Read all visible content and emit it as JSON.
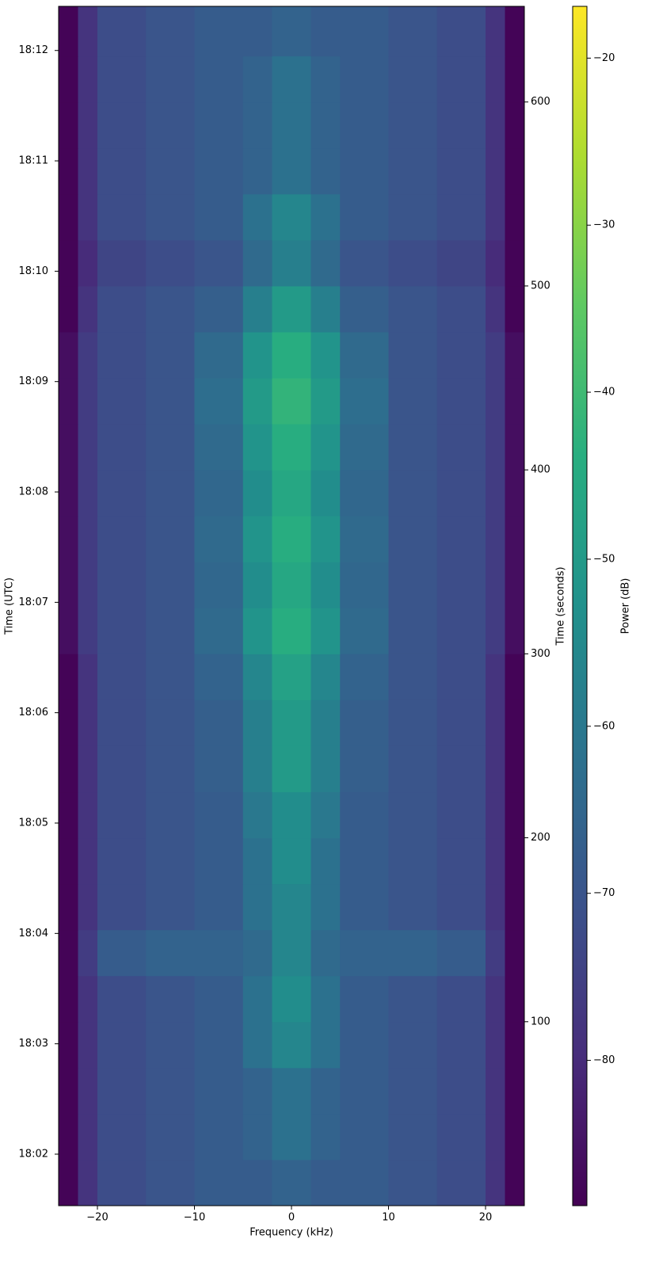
{
  "chart_data": {
    "type": "heatmap",
    "colormap": "viridis",
    "xlabel": "Frequency (kHz)",
    "ylabel": "Time (UTC)",
    "y2label": "Time (seconds)",
    "colorbar_label": "Power (dB)",
    "x_bins": [
      -24,
      -22,
      -20,
      -15,
      -10,
      -5,
      -2,
      2,
      5,
      10,
      15,
      20,
      22,
      24
    ],
    "y_bins": [
      0,
      25,
      50,
      75,
      100,
      125,
      150,
      175,
      200,
      225,
      250,
      275,
      300,
      325,
      350,
      375,
      400,
      425,
      450,
      475,
      500,
      525,
      550,
      575,
      600,
      625,
      652
    ],
    "z": [
      [
        -88,
        -78,
        -72,
        -70,
        -68,
        -68,
        -66,
        -68,
        -68,
        -70,
        -72,
        -78,
        -88
      ],
      [
        -88,
        -78,
        -72,
        -70,
        -68,
        -66,
        -62,
        -66,
        -68,
        -70,
        -72,
        -78,
        -88
      ],
      [
        -88,
        -78,
        -72,
        -70,
        -68,
        -66,
        -62,
        -66,
        -68,
        -70,
        -72,
        -78,
        -88
      ],
      [
        -88,
        -78,
        -72,
        -70,
        -68,
        -62,
        -56,
        -62,
        -68,
        -70,
        -72,
        -78,
        -88
      ],
      [
        -88,
        -78,
        -72,
        -70,
        -68,
        -62,
        -54,
        -62,
        -68,
        -70,
        -72,
        -78,
        -88
      ],
      [
        -88,
        -76,
        -68,
        -66,
        -66,
        -64,
        -56,
        -64,
        -66,
        -66,
        -68,
        -76,
        -88
      ],
      [
        -88,
        -78,
        -72,
        -70,
        -68,
        -62,
        -56,
        -62,
        -68,
        -70,
        -72,
        -78,
        -88
      ],
      [
        -88,
        -78,
        -72,
        -70,
        -68,
        -62,
        -54,
        -62,
        -68,
        -70,
        -72,
        -78,
        -88
      ],
      [
        -88,
        -78,
        -72,
        -70,
        -68,
        -60,
        -54,
        -60,
        -68,
        -70,
        -72,
        -78,
        -88
      ],
      [
        -88,
        -78,
        -72,
        -70,
        -67,
        -58,
        -50,
        -58,
        -67,
        -70,
        -72,
        -78,
        -88
      ],
      [
        -88,
        -78,
        -72,
        -70,
        -67,
        -58,
        -50,
        -58,
        -67,
        -70,
        -72,
        -78,
        -88
      ],
      [
        -88,
        -78,
        -72,
        -70,
        -66,
        -56,
        -48,
        -56,
        -66,
        -70,
        -72,
        -78,
        -88
      ],
      [
        -86,
        -76,
        -72,
        -70,
        -64,
        -52,
        -44,
        -52,
        -64,
        -70,
        -72,
        -76,
        -86
      ],
      [
        -86,
        -76,
        -72,
        -70,
        -65,
        -54,
        -46,
        -54,
        -65,
        -70,
        -72,
        -76,
        -86
      ],
      [
        -86,
        -76,
        -72,
        -70,
        -64,
        -52,
        -44,
        -52,
        -64,
        -70,
        -72,
        -76,
        -86
      ],
      [
        -86,
        -76,
        -72,
        -70,
        -65,
        -54,
        -46,
        -54,
        -65,
        -70,
        -72,
        -76,
        -86
      ],
      [
        -86,
        -76,
        -72,
        -70,
        -64,
        -52,
        -44,
        -52,
        -64,
        -70,
        -72,
        -76,
        -86
      ],
      [
        -86,
        -76,
        -72,
        -70,
        -63,
        -50,
        -42,
        -50,
        -63,
        -70,
        -72,
        -76,
        -86
      ],
      [
        -86,
        -76,
        -72,
        -70,
        -64,
        -52,
        -44,
        -52,
        -64,
        -70,
        -72,
        -76,
        -86
      ],
      [
        -88,
        -78,
        -72,
        -70,
        -67,
        -58,
        -50,
        -58,
        -67,
        -70,
        -72,
        -78,
        -88
      ],
      [
        -88,
        -80,
        -74,
        -72,
        -70,
        -64,
        -58,
        -64,
        -70,
        -72,
        -74,
        -80,
        -88
      ],
      [
        -88,
        -78,
        -72,
        -70,
        -68,
        -62,
        -56,
        -62,
        -68,
        -70,
        -72,
        -78,
        -88
      ],
      [
        -88,
        -78,
        -72,
        -70,
        -68,
        -66,
        -62,
        -66,
        -68,
        -70,
        -72,
        -78,
        -88
      ],
      [
        -88,
        -78,
        -72,
        -70,
        -68,
        -66,
        -62,
        -66,
        -68,
        -70,
        -72,
        -78,
        -88
      ],
      [
        -88,
        -78,
        -72,
        -70,
        -68,
        -66,
        -62,
        -66,
        -68,
        -70,
        -72,
        -78,
        -88
      ],
      [
        -88,
        -78,
        -72,
        -70,
        -68,
        -68,
        -66,
        -68,
        -68,
        -70,
        -72,
        -78,
        -88
      ]
    ],
    "xlim": [
      -24,
      24
    ],
    "xticks": [
      {
        "value": -20,
        "label": "−20"
      },
      {
        "value": -10,
        "label": "−10"
      },
      0,
      10,
      20
    ],
    "ylim": [
      0,
      652
    ],
    "yticks": [
      {
        "value": 28,
        "label": "18:02"
      },
      {
        "value": 88,
        "label": "18:03"
      },
      {
        "value": 148,
        "label": "18:04"
      },
      {
        "value": 208,
        "label": "18:05"
      },
      {
        "value": 268,
        "label": "18:06"
      },
      {
        "value": 328,
        "label": "18:07"
      },
      {
        "value": 388,
        "label": "18:08"
      },
      {
        "value": 448,
        "label": "18:09"
      },
      {
        "value": 508,
        "label": "18:10"
      },
      {
        "value": 568,
        "label": "18:11"
      },
      {
        "value": 628,
        "label": "18:12"
      }
    ],
    "y2lim": [
      0,
      652
    ],
    "y2ticks": [
      100,
      200,
      300,
      400,
      500,
      600
    ],
    "clim": [
      -88.7,
      -16.9
    ],
    "cticks": [
      {
        "value": -80,
        "label": "−80"
      },
      {
        "value": -70,
        "label": "−70"
      },
      {
        "value": -60,
        "label": "−60"
      },
      {
        "value": -50,
        "label": "−50"
      },
      {
        "value": -40,
        "label": "−40"
      },
      {
        "value": -30,
        "label": "−30"
      },
      {
        "value": -20,
        "label": "−20"
      }
    ]
  }
}
